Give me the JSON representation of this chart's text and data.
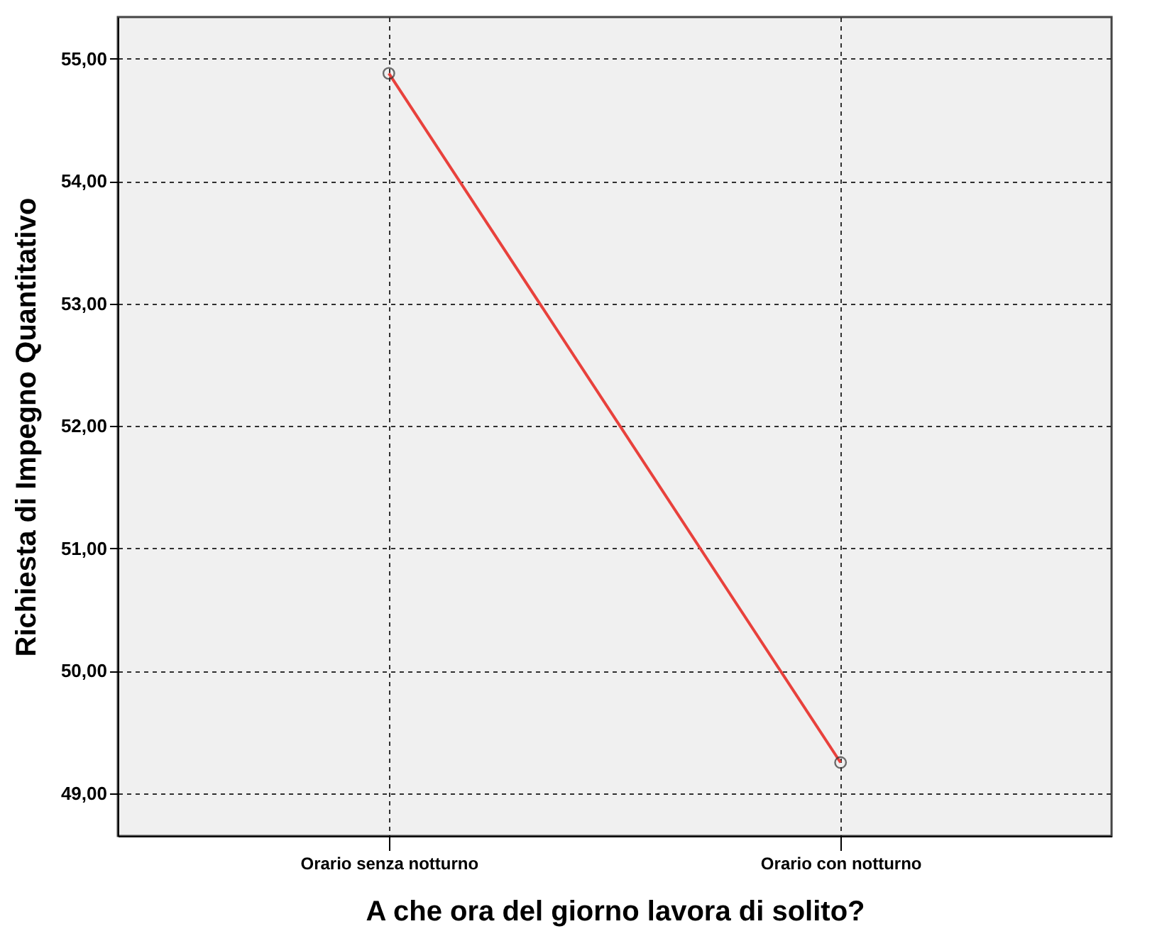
{
  "chart_data": {
    "type": "line",
    "xlabel": "A che ora del giorno lavora di solito?",
    "ylabel": "Richiesta di Impegno Quantitativo",
    "categories": [
      "Orario senza notturno",
      "Orario con notturno"
    ],
    "series": [
      {
        "color": "#e8413c",
        "values": [
          54.88,
          49.25
        ]
      }
    ],
    "ylim": [
      48.65,
      55.34
    ],
    "yticks": [
      {
        "value": 49,
        "label": "49,00"
      },
      {
        "value": 50,
        "label": "50,00"
      },
      {
        "value": 51,
        "label": "51,00"
      },
      {
        "value": 52,
        "label": "52,00"
      },
      {
        "value": 53,
        "label": "53,00"
      },
      {
        "value": 54,
        "label": "54,00"
      },
      {
        "value": 55,
        "label": "55,00"
      }
    ],
    "grid": true,
    "marker": "circle",
    "line_style": "solid"
  }
}
